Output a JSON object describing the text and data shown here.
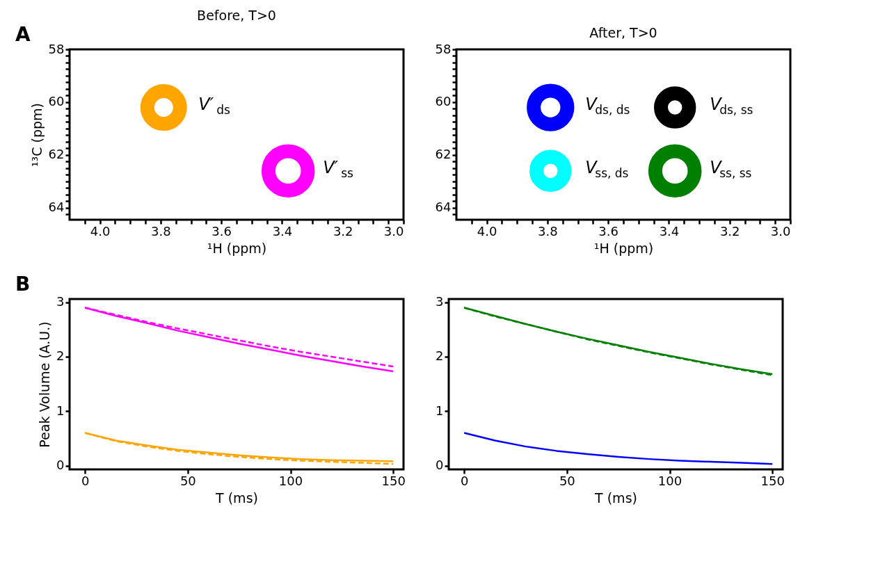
{
  "chart_data": [
    {
      "type": "bubble",
      "title": "Before, T>0",
      "xlabel": "¹H (ppm)",
      "ylabel": "¹³C (ppm)",
      "x": [
        3.79,
        3.38
      ],
      "values": [
        60.2,
        62.6
      ],
      "sizes": [
        0.69,
        1
      ],
      "colors": [
        "#ffa500",
        "#ff00ff"
      ],
      "xlim": [
        4.1,
        3.0
      ],
      "ylim": [
        64.45,
        58
      ],
      "xticks": [
        {
          "value": 4.05,
          "label": null
        },
        {
          "value": 4.0,
          "label": "4.0"
        },
        {
          "value": 3.95,
          "label": null
        },
        {
          "value": 3.9,
          "label": null
        },
        {
          "value": 3.85,
          "label": null
        },
        {
          "value": 3.8,
          "label": "3.8"
        },
        {
          "value": 3.75,
          "label": null
        },
        {
          "value": 3.7,
          "label": null
        },
        {
          "value": 3.65,
          "label": null
        },
        {
          "value": 3.6,
          "label": "3.6"
        },
        {
          "value": 3.55,
          "label": null
        },
        {
          "value": 3.5,
          "label": null
        },
        {
          "value": 3.45,
          "label": null
        },
        {
          "value": 3.4,
          "label": "3.4"
        },
        {
          "value": 3.35,
          "label": null
        },
        {
          "value": 3.3,
          "label": null
        },
        {
          "value": 3.25,
          "label": null
        },
        {
          "value": 3.2,
          "label": "3.2"
        },
        {
          "value": 3.15,
          "label": null
        },
        {
          "value": 3.1,
          "label": null
        },
        {
          "value": 3.05,
          "label": null
        },
        {
          "value": 3.0,
          "label": "3.0"
        }
      ],
      "yticks": [
        58,
        {
          "value": 58.25,
          "label": null
        },
        {
          "value": 58.5,
          "label": null
        },
        {
          "value": 58.75,
          "label": null
        },
        {
          "value": 59,
          "label": null
        },
        {
          "value": 59.25,
          "label": null
        },
        {
          "value": 59.5,
          "label": null
        },
        {
          "value": 59.75,
          "label": null
        },
        60,
        {
          "value": 60.25,
          "label": null
        },
        {
          "value": 60.5,
          "label": null
        },
        {
          "value": 60.75,
          "label": null
        },
        {
          "value": 61,
          "label": null
        },
        {
          "value": 61.25,
          "label": null
        },
        {
          "value": 61.5,
          "label": null
        },
        {
          "value": 61.75,
          "label": null
        },
        62,
        {
          "value": 62.25,
          "label": null
        },
        {
          "value": 62.5,
          "label": null
        },
        {
          "value": 62.75,
          "label": null
        },
        {
          "value": 63,
          "label": null
        },
        {
          "value": 63.25,
          "label": null
        },
        {
          "value": 63.5,
          "label": null
        },
        {
          "value": 63.75,
          "label": null
        },
        64,
        {
          "value": 64.25,
          "label": null
        }
      ],
      "annotations": [
        "A",
        "V′$_{ds}$",
        "V′$_{ss}$"
      ],
      "grid": false,
      "legend": false
    },
    {
      "type": "bubble",
      "title": "After, T>0",
      "xlabel": "¹H (ppm)",
      "x": [
        3.79,
        3.38,
        3.79,
        3.38
      ],
      "values": [
        60.2,
        60.2,
        62.6,
        62.6
      ],
      "sizes": [
        0.73,
        0.51,
        0.51,
        1
      ],
      "colors": [
        "#0000ff",
        "#000000",
        "#00ffff",
        "#008000"
      ],
      "xlim": [
        4.1,
        3.0
      ],
      "ylim": [
        64.45,
        58
      ],
      "xticks": [
        {
          "value": 4.05,
          "label": null
        },
        {
          "value": 4.0,
          "label": "4.0"
        },
        {
          "value": 3.95,
          "label": null
        },
        {
          "value": 3.9,
          "label": null
        },
        {
          "value": 3.85,
          "label": null
        },
        {
          "value": 3.8,
          "label": "3.8"
        },
        {
          "value": 3.75,
          "label": null
        },
        {
          "value": 3.7,
          "label": null
        },
        {
          "value": 3.65,
          "label": null
        },
        {
          "value": 3.6,
          "label": "3.6"
        },
        {
          "value": 3.55,
          "label": null
        },
        {
          "value": 3.5,
          "label": null
        },
        {
          "value": 3.45,
          "label": null
        },
        {
          "value": 3.4,
          "label": "3.4"
        },
        {
          "value": 3.35,
          "label": null
        },
        {
          "value": 3.3,
          "label": null
        },
        {
          "value": 3.25,
          "label": null
        },
        {
          "value": 3.2,
          "label": "3.2"
        },
        {
          "value": 3.15,
          "label": null
        },
        {
          "value": 3.1,
          "label": null
        },
        {
          "value": 3.05,
          "label": null
        },
        {
          "value": 3.0,
          "label": "3.0"
        }
      ],
      "yticks": [
        58,
        {
          "value": 58.25,
          "label": null
        },
        {
          "value": 58.5,
          "label": null
        },
        {
          "value": 58.75,
          "label": null
        },
        {
          "value": 59,
          "label": null
        },
        {
          "value": 59.25,
          "label": null
        },
        {
          "value": 59.5,
          "label": null
        },
        {
          "value": 59.75,
          "label": null
        },
        60,
        {
          "value": 60.25,
          "label": null
        },
        {
          "value": 60.5,
          "label": null
        },
        {
          "value": 60.75,
          "label": null
        },
        {
          "value": 61,
          "label": null
        },
        {
          "value": 61.25,
          "label": null
        },
        {
          "value": 61.5,
          "label": null
        },
        {
          "value": 61.75,
          "label": null
        },
        62,
        {
          "value": 62.25,
          "label": null
        },
        {
          "value": 62.5,
          "label": null
        },
        {
          "value": 62.75,
          "label": null
        },
        {
          "value": 63,
          "label": null
        },
        {
          "value": 63.25,
          "label": null
        },
        {
          "value": 63.5,
          "label": null
        },
        {
          "value": 63.75,
          "label": null
        },
        64,
        {
          "value": 64.25,
          "label": null
        }
      ],
      "annotations": [
        "V$_{ds, ds}$",
        "V$_{ds, ss}$",
        "V$_{ss, ds}$",
        "V$_{ss, ss}$"
      ],
      "grid": false,
      "legend": false
    },
    {
      "type": "line",
      "xlabel": "T (ms)",
      "ylabel": "Peak Volume (A.U.)",
      "x": [
        0,
        15,
        30,
        45,
        60,
        75,
        90,
        105,
        120,
        135,
        150
      ],
      "series": [
        {
          "color": "#ff00ff",
          "line_style": "solid",
          "values": [
            2.9,
            2.75,
            2.62,
            2.48,
            2.36,
            2.24,
            2.13,
            2.02,
            1.92,
            1.82,
            1.73
          ]
        },
        {
          "color": "#ff00ff",
          "line_style": "dashed",
          "values": [
            2.9,
            2.77,
            2.64,
            2.52,
            2.41,
            2.3,
            2.19,
            2.09,
            2.0,
            1.91,
            1.82
          ]
        },
        {
          "color": "#ffa500",
          "line_style": "solid",
          "values": [
            0.6,
            0.46,
            0.37,
            0.29,
            0.24,
            0.19,
            0.15,
            0.12,
            0.1,
            0.09,
            0.08
          ]
        },
        {
          "color": "#ffa500",
          "line_style": "dashed",
          "values": [
            0.6,
            0.45,
            0.35,
            0.27,
            0.21,
            0.16,
            0.12,
            0.09,
            0.07,
            0.05,
            0.03
          ]
        }
      ],
      "xlim": [
        -7.5,
        155
      ],
      "ylim": [
        -0.07,
        3.06
      ],
      "xticks": [
        0,
        50,
        100,
        150
      ],
      "yticks": [
        0,
        1,
        2,
        3
      ],
      "annotations": [
        "B"
      ],
      "grid": false,
      "legend": false,
      "marker": "none"
    },
    {
      "type": "line",
      "xlabel": "T (ms)",
      "x": [
        0,
        15,
        30,
        45,
        60,
        75,
        90,
        105,
        120,
        135,
        150
      ],
      "series": [
        {
          "color": "#008000",
          "line_style": "solid",
          "values": [
            2.9,
            2.75,
            2.6,
            2.46,
            2.33,
            2.21,
            2.09,
            1.98,
            1.87,
            1.77,
            1.68
          ]
        },
        {
          "color": "#008000",
          "line_style": "dashed",
          "values": [
            2.9,
            2.74,
            2.6,
            2.46,
            2.32,
            2.2,
            2.08,
            1.97,
            1.86,
            1.76,
            1.66
          ]
        },
        {
          "color": "#0000ff",
          "line_style": "solid",
          "values": [
            0.6,
            0.46,
            0.35,
            0.27,
            0.21,
            0.16,
            0.12,
            0.09,
            0.07,
            0.05,
            0.03
          ]
        }
      ],
      "xlim": [
        -7.5,
        155
      ],
      "ylim": [
        -0.07,
        3.06
      ],
      "xticks": [
        0,
        50,
        100,
        150
      ],
      "yticks": [
        0,
        1,
        2,
        3
      ],
      "grid": false,
      "legend": false,
      "marker": "none"
    }
  ]
}
